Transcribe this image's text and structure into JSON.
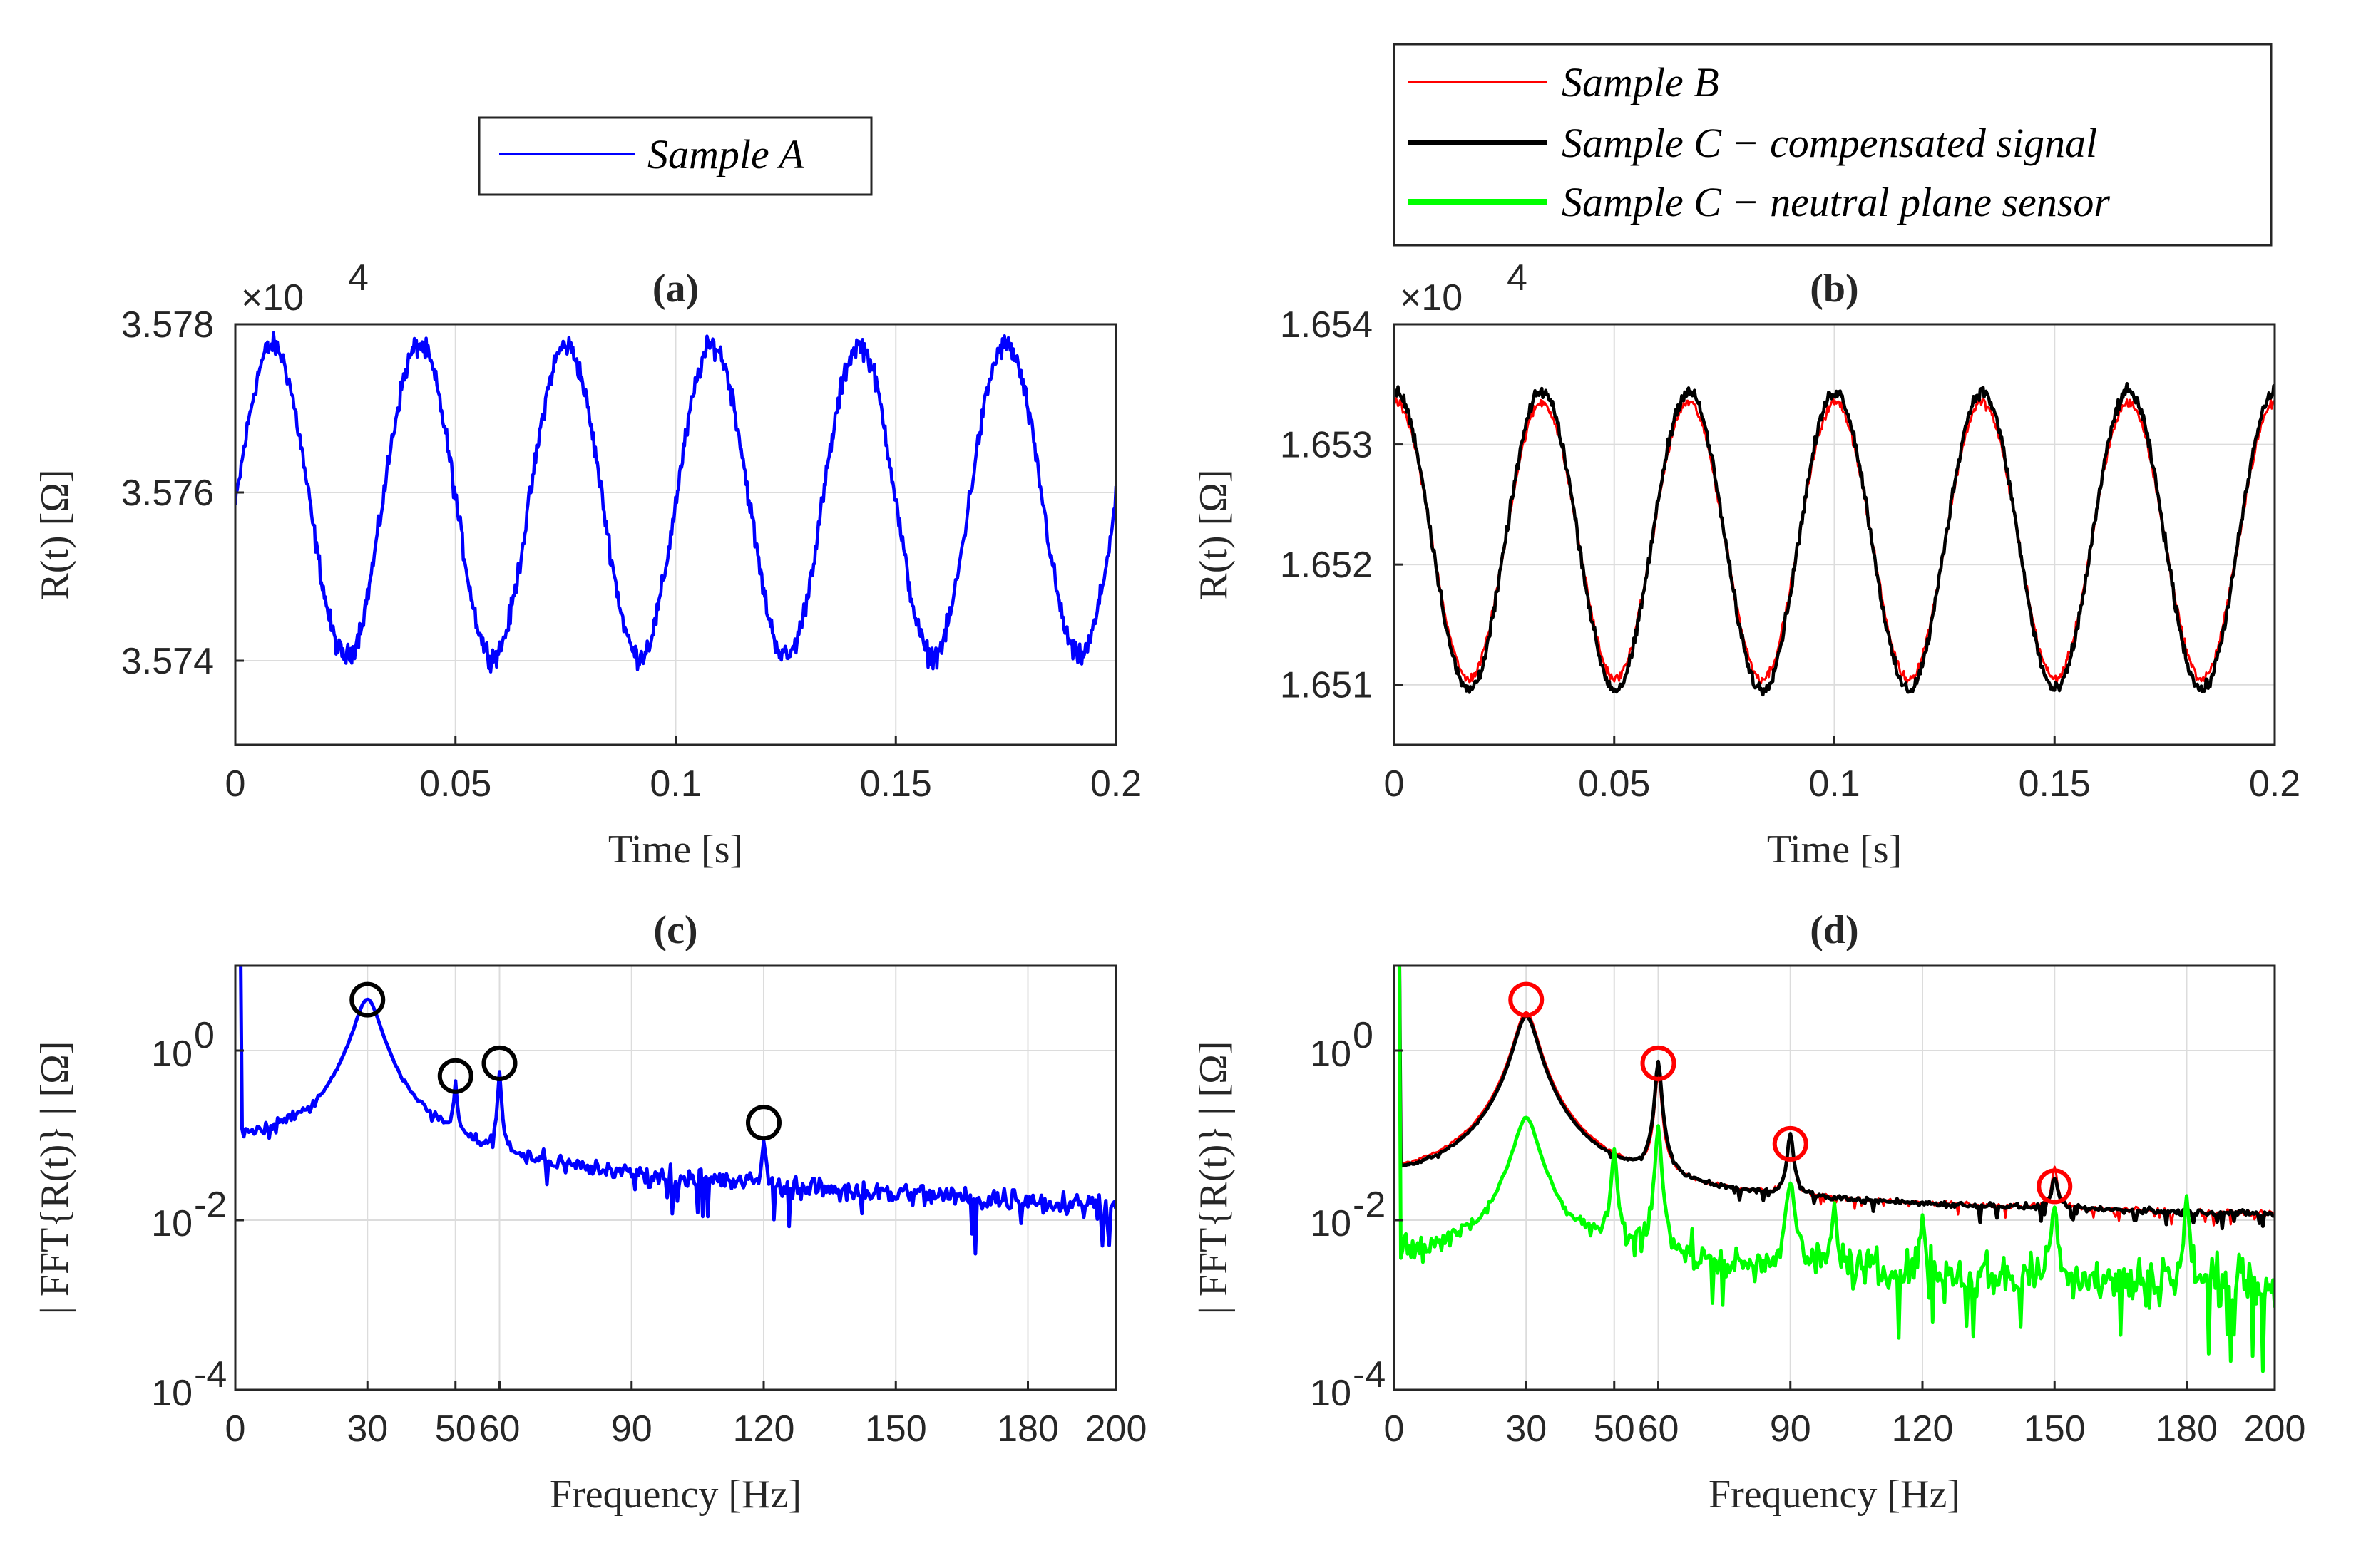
{
  "figure": {
    "colors": {
      "sample_a": "#0000ff",
      "sample_b": "#ff0000",
      "sample_c_comp": "#000000",
      "sample_c_neutral": "#00ff00",
      "grid": "#dcdcdc",
      "axis": "#262626"
    }
  },
  "legend_a": {
    "items": [
      "Sample A"
    ]
  },
  "legend_b": {
    "items": [
      "Sample B",
      "Sample C − compensated signal",
      "Sample C − neutral plane sensor"
    ]
  },
  "chart_data": [
    {
      "id": "a",
      "type": "line",
      "title": "(a)",
      "xlabel": "Time [s]",
      "ylabel": "R(t) [Ω]",
      "multiplier": "×10",
      "multiplier_exp": "4",
      "xlim": [
        0,
        0.2
      ],
      "ylim": [
        3.573,
        3.578
      ],
      "xticks": [
        0,
        0.05,
        0.1,
        0.15,
        0.2
      ],
      "xtick_labels": [
        "0",
        "0.05",
        "0.1",
        "0.15",
        "0.2"
      ],
      "yticks": [
        3.574,
        3.576,
        3.578
      ],
      "ytick_labels": [
        "3.574",
        "3.576",
        "3.578"
      ],
      "grid": true,
      "series": [
        {
          "name": "Sample A",
          "color": "#0000ff",
          "period": 0.0333,
          "mean": 3.5759,
          "amplitude": 0.00185,
          "phase": 0.0085,
          "noise": 0.0001
        }
      ]
    },
    {
      "id": "b",
      "type": "line",
      "title": "(b)",
      "xlabel": "Time [s]",
      "ylabel": "R(t) [Ω]",
      "multiplier": "×10",
      "multiplier_exp": "4",
      "xlim": [
        0,
        0.2
      ],
      "ylim": [
        1.6505,
        1.654
      ],
      "xticks": [
        0,
        0.05,
        0.1,
        0.15,
        0.2
      ],
      "xtick_labels": [
        "0",
        "0.05",
        "0.1",
        "0.15",
        "0.2"
      ],
      "yticks": [
        1.651,
        1.652,
        1.653,
        1.654
      ],
      "ytick_labels": [
        "1.651",
        "1.652",
        "1.653",
        "1.654"
      ],
      "grid": true,
      "series": [
        {
          "name": "Sample B",
          "color": "#ff0000",
          "period": 0.0333,
          "mean": 1.6522,
          "amplitude": 0.00115,
          "phase": 0.0003,
          "noise": 3e-05
        },
        {
          "name": "Sample C − compensated signal",
          "color": "#000000",
          "period": 0.0333,
          "mean": 1.6522,
          "amplitude": 0.00124,
          "phase": 0.0003,
          "noise": 4e-05
        }
      ]
    },
    {
      "id": "c",
      "type": "line",
      "scale": "log",
      "title": "(c)",
      "xlabel": "Frequency [Hz]",
      "ylabel": "| FFT{R(t)} | [Ω]",
      "xlim": [
        0,
        200
      ],
      "ylim_exp": [
        -4,
        1
      ],
      "xticks": [
        0,
        30,
        50,
        60,
        90,
        120,
        150,
        180,
        200
      ],
      "xtick_labels": [
        "0",
        "30",
        "50",
        "60",
        "90",
        "120",
        "150",
        "180",
        "200"
      ],
      "yticks_exp": [
        -4,
        -2,
        0
      ],
      "ytick_labels": [
        "10",
        "10",
        "10"
      ],
      "ytick_exps": [
        "-4",
        "-2",
        "0"
      ],
      "grid": true,
      "series": [
        {
          "name": "Sample A",
          "color": "#0000ff",
          "floor_start": -1.1,
          "floor_end": -1.85,
          "noise": 0.12,
          "dip_depth": 0.5,
          "peaks": [
            {
              "f": 30,
              "v": 0.6,
              "w": 2.8
            },
            {
              "f": 50,
              "v": -0.5,
              "w": 0.35
            },
            {
              "f": 60,
              "v": -0.3,
              "w": 0.35
            },
            {
              "f": 120,
              "v": -1.2,
              "w": 0.35
            }
          ]
        }
      ],
      "markers": [
        {
          "f": 30,
          "v": 0.6,
          "color": "#000000"
        },
        {
          "f": 50,
          "v": -0.3,
          "color": "#000000"
        },
        {
          "f": 60,
          "v": -0.15,
          "color": "#000000"
        },
        {
          "f": 120,
          "v": -0.85,
          "color": "#000000"
        }
      ]
    },
    {
      "id": "d",
      "type": "line",
      "scale": "log",
      "title": "(d)",
      "xlabel": "Frequency [Hz]",
      "ylabel": "| FFT{R(t)} | [Ω]",
      "xlim": [
        0,
        200
      ],
      "ylim_exp": [
        -4,
        1
      ],
      "xticks": [
        0,
        30,
        50,
        60,
        90,
        120,
        150,
        180,
        200
      ],
      "xtick_labels": [
        "0",
        "30",
        "50",
        "60",
        "90",
        "120",
        "150",
        "180",
        "200"
      ],
      "yticks_exp": [
        -4,
        -2,
        0
      ],
      "ytick_labels": [
        "10",
        "10",
        "10"
      ],
      "ytick_exps": [
        "-4",
        "-2",
        "0"
      ],
      "grid": true,
      "series": [
        {
          "name": "Sample B",
          "color": "#ff0000",
          "floor_start": -1.6,
          "floor_end": -1.95,
          "noise": 0.03,
          "dip_depth": 0.1,
          "peaks": [
            {
              "f": 30,
              "v": 0.45,
              "w": 2.5
            },
            {
              "f": 60,
              "v": -0.3,
              "w": 0.6
            },
            {
              "f": 90,
              "v": -1.1,
              "w": 0.6
            },
            {
              "f": 150,
              "v": -1.55,
              "w": 0.6
            }
          ]
        },
        {
          "name": "Sample C − compensated signal",
          "color": "#000000",
          "floor_start": -1.6,
          "floor_end": -1.95,
          "noise": 0.03,
          "dip_depth": 0.15,
          "peaks": [
            {
              "f": 30,
              "v": 0.4,
              "w": 2.5
            },
            {
              "f": 60,
              "v": -0.15,
              "w": 0.6
            },
            {
              "f": 90,
              "v": -1.05,
              "w": 0.6
            },
            {
              "f": 150,
              "v": -1.7,
              "w": 0.6
            }
          ]
        },
        {
          "name": "Sample C − neutral plane sensor",
          "color": "#00ff00",
          "floor_start": -2.45,
          "floor_end": -2.75,
          "noise": 0.22,
          "dip_depth": 0.9,
          "peaks": [
            {
              "f": 30,
              "v": -0.8,
              "w": 2.5
            },
            {
              "f": 50,
              "v": -1.2,
              "w": 0.5
            },
            {
              "f": 60,
              "v": -0.9,
              "w": 0.5
            },
            {
              "f": 90,
              "v": -1.6,
              "w": 0.8
            },
            {
              "f": 100,
              "v": -1.9,
              "w": 0.5
            },
            {
              "f": 120,
              "v": -2.1,
              "w": 0.5
            },
            {
              "f": 150,
              "v": -1.9,
              "w": 0.6
            },
            {
              "f": 180,
              "v": -1.75,
              "w": 0.4
            }
          ]
        }
      ],
      "markers": [
        {
          "f": 30,
          "v": 0.6,
          "color": "#ff0000"
        },
        {
          "f": 60,
          "v": -0.15,
          "color": "#ff0000"
        },
        {
          "f": 90,
          "v": -1.1,
          "color": "#ff0000"
        },
        {
          "f": 150,
          "v": -1.6,
          "color": "#ff0000"
        }
      ]
    }
  ]
}
